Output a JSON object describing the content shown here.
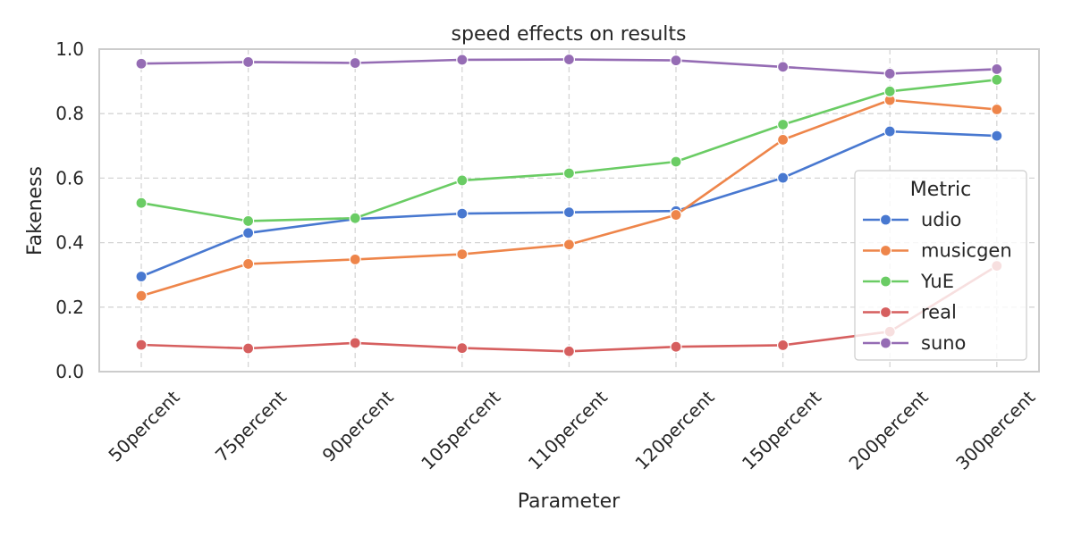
{
  "chart_data": {
    "type": "line",
    "title": "speed effects on results",
    "xlabel": "Parameter",
    "ylabel": "Fakeness",
    "ylim": [
      0,
      1
    ],
    "yticks": [
      "0.0",
      "0.2",
      "0.4",
      "0.6",
      "0.8",
      "1.0"
    ],
    "grid": true,
    "legend_title": "Metric",
    "legend_position": "center-right",
    "categories": [
      "50percent",
      "75percent",
      "90percent",
      "105percent",
      "110percent",
      "120percent",
      "150percent",
      "200percent",
      "300percent"
    ],
    "series": [
      {
        "name": "udio",
        "color": "#4878d0",
        "values": [
          0.295,
          0.43,
          0.473,
          0.49,
          0.494,
          0.498,
          0.601,
          0.745,
          0.731
        ]
      },
      {
        "name": "musicgen",
        "color": "#ee854a",
        "values": [
          0.235,
          0.334,
          0.348,
          0.364,
          0.394,
          0.486,
          0.719,
          0.842,
          0.813
        ]
      },
      {
        "name": "YuE",
        "color": "#6acc64",
        "values": [
          0.523,
          0.467,
          0.476,
          0.593,
          0.615,
          0.651,
          0.766,
          0.869,
          0.905
        ]
      },
      {
        "name": "real",
        "color": "#d65f5f",
        "values": [
          0.083,
          0.072,
          0.089,
          0.073,
          0.063,
          0.077,
          0.082,
          0.124,
          0.328
        ]
      },
      {
        "name": "suno",
        "color": "#956cb4",
        "values": [
          0.955,
          0.96,
          0.957,
          0.967,
          0.968,
          0.965,
          0.945,
          0.924,
          0.938
        ]
      }
    ]
  }
}
